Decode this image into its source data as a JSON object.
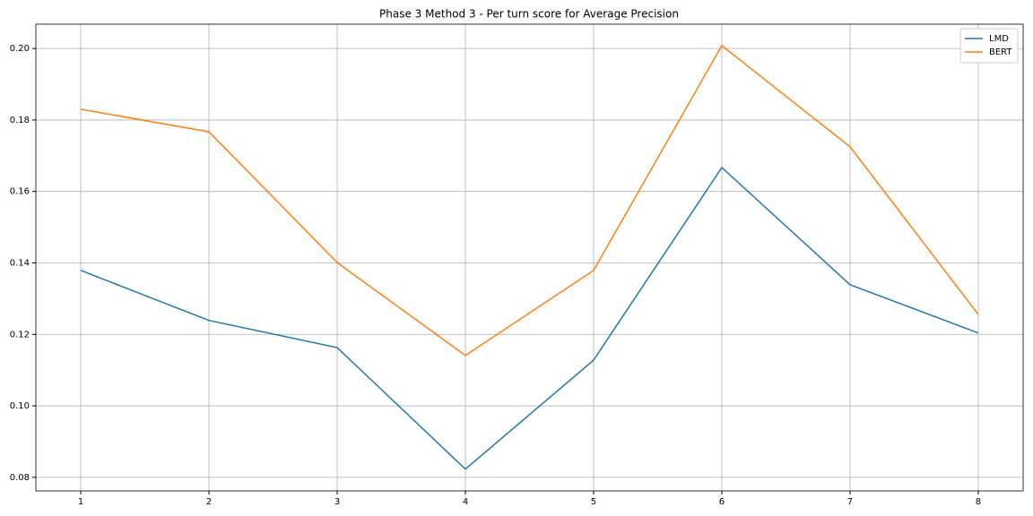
{
  "chart_data": {
    "type": "line",
    "title": "Phase 3 Method 3 - Per turn score for Average Precision",
    "x": [
      1,
      2,
      3,
      4,
      5,
      6,
      7,
      8
    ],
    "series": [
      {
        "name": "LMD",
        "color": "#1f77b4",
        "values": [
          0.1379,
          0.1239,
          0.1163,
          0.0823,
          0.1128,
          0.1667,
          0.1339,
          0.1204
        ]
      },
      {
        "name": "BERT",
        "color": "#ff7f0e",
        "values": [
          0.183,
          0.1767,
          0.1401,
          0.1141,
          0.1379,
          0.2008,
          0.1725,
          0.1256
        ]
      }
    ],
    "xlim": [
      0.65,
      8.35
    ],
    "xticks": [
      1,
      2,
      3,
      4,
      5,
      6,
      7,
      8
    ],
    "ylim": [
      0.0762,
      0.2068
    ],
    "yticks": [
      0.08,
      {
        "value": 0.1,
        "label": "0.10"
      },
      0.12,
      0.14,
      0.16,
      0.18,
      {
        "value": 0.2,
        "label": "0.20"
      }
    ],
    "grid": true,
    "legend": "upper right"
  }
}
